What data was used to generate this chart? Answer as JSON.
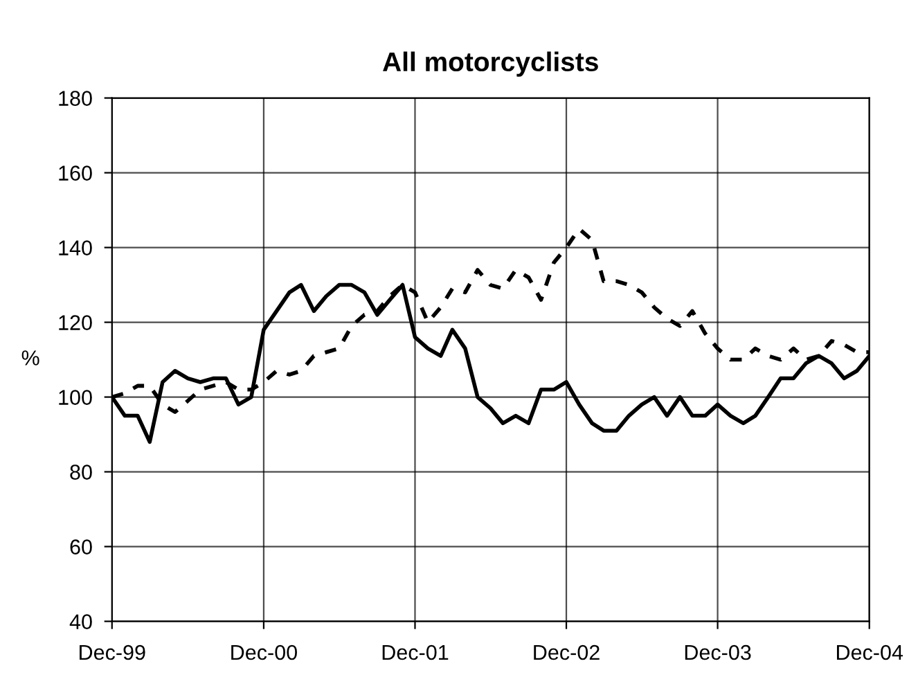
{
  "chart_data": {
    "type": "line",
    "title": "All motorcyclists",
    "ylabel": "%",
    "x": [
      "1999-12",
      "2000-01",
      "2000-02",
      "2000-03",
      "2000-04",
      "2000-05",
      "2000-06",
      "2000-07",
      "2000-08",
      "2000-09",
      "2000-10",
      "2000-11",
      "2000-12",
      "2001-01",
      "2001-02",
      "2001-03",
      "2001-04",
      "2001-05",
      "2001-06",
      "2001-07",
      "2001-08",
      "2001-09",
      "2001-10",
      "2001-11",
      "2001-12",
      "2002-01",
      "2002-02",
      "2002-03",
      "2002-04",
      "2002-05",
      "2002-06",
      "2002-07",
      "2002-08",
      "2002-09",
      "2002-10",
      "2002-11",
      "2002-12",
      "2003-01",
      "2003-02",
      "2003-03",
      "2003-04",
      "2003-05",
      "2003-06",
      "2003-07",
      "2003-08",
      "2003-09",
      "2003-10",
      "2003-11",
      "2003-12",
      "2004-01",
      "2004-02",
      "2004-03",
      "2004-04",
      "2004-05",
      "2004-06",
      "2004-07",
      "2004-08",
      "2004-09",
      "2004-10",
      "2004-11",
      "2004-12"
    ],
    "series": [
      {
        "color": "#000000",
        "line_style": "solid",
        "values": [
          100,
          95,
          95,
          88,
          104,
          107,
          105,
          104,
          105,
          105,
          98,
          100,
          118,
          123,
          128,
          130,
          123,
          127,
          130,
          130,
          128,
          122,
          126,
          130,
          116,
          113,
          111,
          118,
          113,
          100,
          97,
          93,
          95,
          93,
          102,
          102,
          104,
          98,
          93,
          91,
          91,
          95,
          98,
          100,
          95,
          100,
          95,
          95,
          98,
          95,
          93,
          95,
          100,
          105,
          105,
          109,
          111,
          109,
          105,
          107,
          111
        ]
      },
      {
        "color": "#000000",
        "line_style": "dashed",
        "values": [
          100,
          101,
          103,
          103,
          98,
          96,
          99,
          102,
          103,
          104,
          102,
          102,
          104,
          107,
          106,
          107,
          111,
          112,
          113,
          119,
          122,
          123,
          127,
          130,
          128,
          120,
          124,
          129,
          128,
          134,
          130,
          129,
          134,
          132,
          126,
          136,
          140,
          145,
          142,
          131,
          131,
          130,
          128,
          124,
          121,
          119,
          123,
          117,
          113,
          110,
          110,
          113,
          111,
          110,
          113,
          110,
          111,
          115,
          114,
          112,
          112
        ]
      }
    ],
    "xlim": [
      "1999-12",
      "2004-12"
    ],
    "xticks": [
      {
        "value": "1999-12",
        "label": "Dec-99"
      },
      {
        "value": "2000-12",
        "label": "Dec-00"
      },
      {
        "value": "2001-12",
        "label": "Dec-01"
      },
      {
        "value": "2002-12",
        "label": "Dec-02"
      },
      {
        "value": "2003-12",
        "label": "Dec-03"
      },
      {
        "value": "2004-12",
        "label": "Dec-04"
      }
    ],
    "ylim": [
      40,
      180
    ],
    "yticks": [
      40,
      60,
      80,
      100,
      120,
      140,
      160,
      180
    ],
    "grid": true
  }
}
